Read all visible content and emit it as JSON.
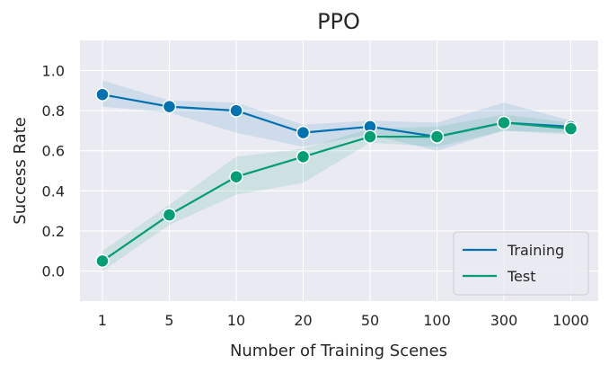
{
  "chart_data": {
    "type": "line",
    "title": "PPO",
    "xlabel": "Number of Training Scenes",
    "ylabel": "Success Rate",
    "categories": [
      "1",
      "5",
      "10",
      "20",
      "50",
      "100",
      "300",
      "1000"
    ],
    "ylim": [
      -0.15,
      1.15
    ],
    "yticks": [
      "0.0",
      "0.2",
      "0.4",
      "0.6",
      "0.8",
      "1.0"
    ],
    "ytick_values": [
      0.0,
      0.2,
      0.4,
      0.6,
      0.8,
      1.0
    ],
    "grid": true,
    "legend_position": "lower-right",
    "series": [
      {
        "name": "Training",
        "color": "#0072B2",
        "values": [
          0.88,
          0.82,
          0.8,
          0.69,
          0.72,
          0.67,
          0.74,
          0.72
        ],
        "lower": [
          0.82,
          0.79,
          0.69,
          0.62,
          0.68,
          0.6,
          0.7,
          0.69
        ],
        "upper": [
          0.95,
          0.85,
          0.84,
          0.73,
          0.75,
          0.74,
          0.84,
          0.75
        ]
      },
      {
        "name": "Test",
        "color": "#009E73",
        "values": [
          0.05,
          0.28,
          0.47,
          0.57,
          0.67,
          0.67,
          0.74,
          0.71
        ],
        "lower": [
          0.0,
          0.23,
          0.38,
          0.44,
          0.64,
          0.62,
          0.7,
          0.68
        ],
        "upper": [
          0.1,
          0.33,
          0.57,
          0.61,
          0.71,
          0.72,
          0.78,
          0.74
        ]
      }
    ]
  }
}
